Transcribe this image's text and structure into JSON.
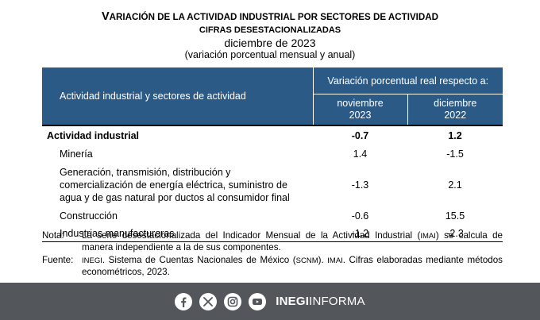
{
  "title": {
    "line1_initial": "V",
    "line1_rest": "ARIACIÓN DE LA ACTIVIDAD INDUSTRIAL POR SECTORES DE ACTIVIDAD",
    "line2": "CIFRAS DESESTACIONALIZADAS",
    "line3": "diciembre de 2023",
    "line4": "(variación porcentual mensual y anual)"
  },
  "table": {
    "header_left": "Actividad industrial y sectores de actividad",
    "header_group": "Variación porcentual real respecto a:",
    "col1_line1": "noviembre",
    "col1_line2": "2023",
    "col2_line1": "diciembre",
    "col2_line2": "2022",
    "rows": [
      {
        "label": "Actividad industrial",
        "v1": "-0.7",
        "v2": "1.2"
      },
      {
        "label": "Minería",
        "v1": "1.4",
        "v2": "-1.5"
      },
      {
        "label_lines": [
          "Generación, transmisión, distribución y",
          "comercialización de energía eléctrica, suministro de",
          "agua y de gas natural por ductos al consumidor final"
        ],
        "v1": "-1.3",
        "v2": "2.1"
      },
      {
        "label": "Construcción",
        "v1": "-0.6",
        "v2": "15.5"
      },
      {
        "label": "Industrias manufactureras",
        "v1": "-1.2",
        "v2": "-2.3"
      }
    ]
  },
  "notes": {
    "nota_key": "Nota:",
    "nota_text_a": "La serie desestacionalizada del Indicador Mensual de la Actividad Industrial (",
    "nota_abbr": "IMAI",
    "nota_text_b": ") se calcula de manera independiente a la de sus componentes.",
    "fuente_key": "Fuente:",
    "fuente_abbr1": "INEGI",
    "fuente_text_a": ". Sistema de Cuentas Nacionales de México (",
    "fuente_abbr2": "SCNM",
    "fuente_text_b": "). ",
    "fuente_abbr3": "IMAI",
    "fuente_text_c": ". Cifras elaboradas mediante métodos econométricos, 2023."
  },
  "footer": {
    "brand_bold": "INEGI",
    "brand_regular": "INFORMA",
    "icons": [
      "facebook-icon",
      "x-icon",
      "instagram-icon",
      "youtube-icon"
    ],
    "bg_color": "#53565a"
  },
  "colors": {
    "header_bg": "#2b5a87"
  }
}
